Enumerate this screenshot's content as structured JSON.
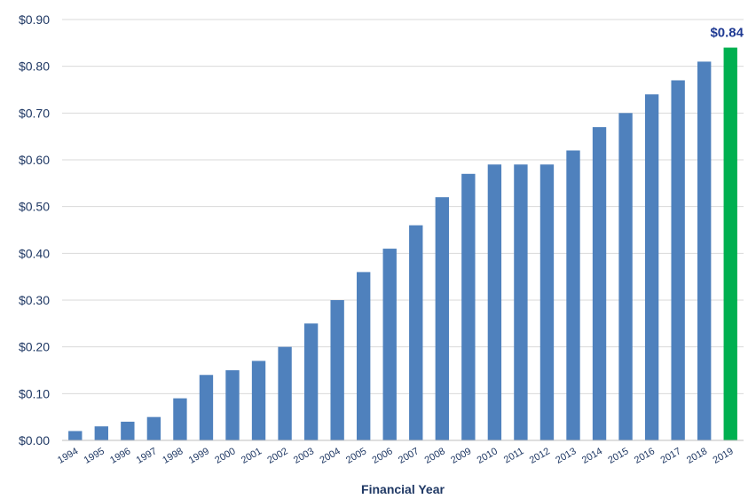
{
  "chart_data": {
    "type": "bar",
    "title": "",
    "xlabel": "Financial Year",
    "ylabel": "",
    "ylim": [
      0,
      0.9
    ],
    "yticks": [
      0,
      0.1,
      0.2,
      0.3,
      0.4,
      0.5,
      0.6,
      0.7,
      0.8,
      0.9
    ],
    "ytick_labels": [
      "$0.00",
      "$0.10",
      "$0.20",
      "$0.30",
      "$0.40",
      "$0.50",
      "$0.60",
      "$0.70",
      "$0.80",
      "$0.90"
    ],
    "grid": true,
    "categories": [
      "1994",
      "1995",
      "1996",
      "1997",
      "1998",
      "1999",
      "2000",
      "2001",
      "2002",
      "2003",
      "2004",
      "2005",
      "2006",
      "2007",
      "2008",
      "2009",
      "2010",
      "2011",
      "2012",
      "2013",
      "2014",
      "2015",
      "2016",
      "2017",
      "2018",
      "2019"
    ],
    "values": [
      0.02,
      0.03,
      0.04,
      0.05,
      0.09,
      0.14,
      0.15,
      0.17,
      0.2,
      0.25,
      0.3,
      0.36,
      0.41,
      0.46,
      0.52,
      0.57,
      0.59,
      0.59,
      0.59,
      0.62,
      0.67,
      0.7,
      0.74,
      0.77,
      0.81,
      0.84
    ],
    "bar_color": "#4f81bd",
    "highlight_color": "#00b050",
    "highlight_index": 25,
    "data_labels": [
      {
        "index": 25,
        "text": "$0.84",
        "color": "#1f3a93"
      }
    ]
  }
}
